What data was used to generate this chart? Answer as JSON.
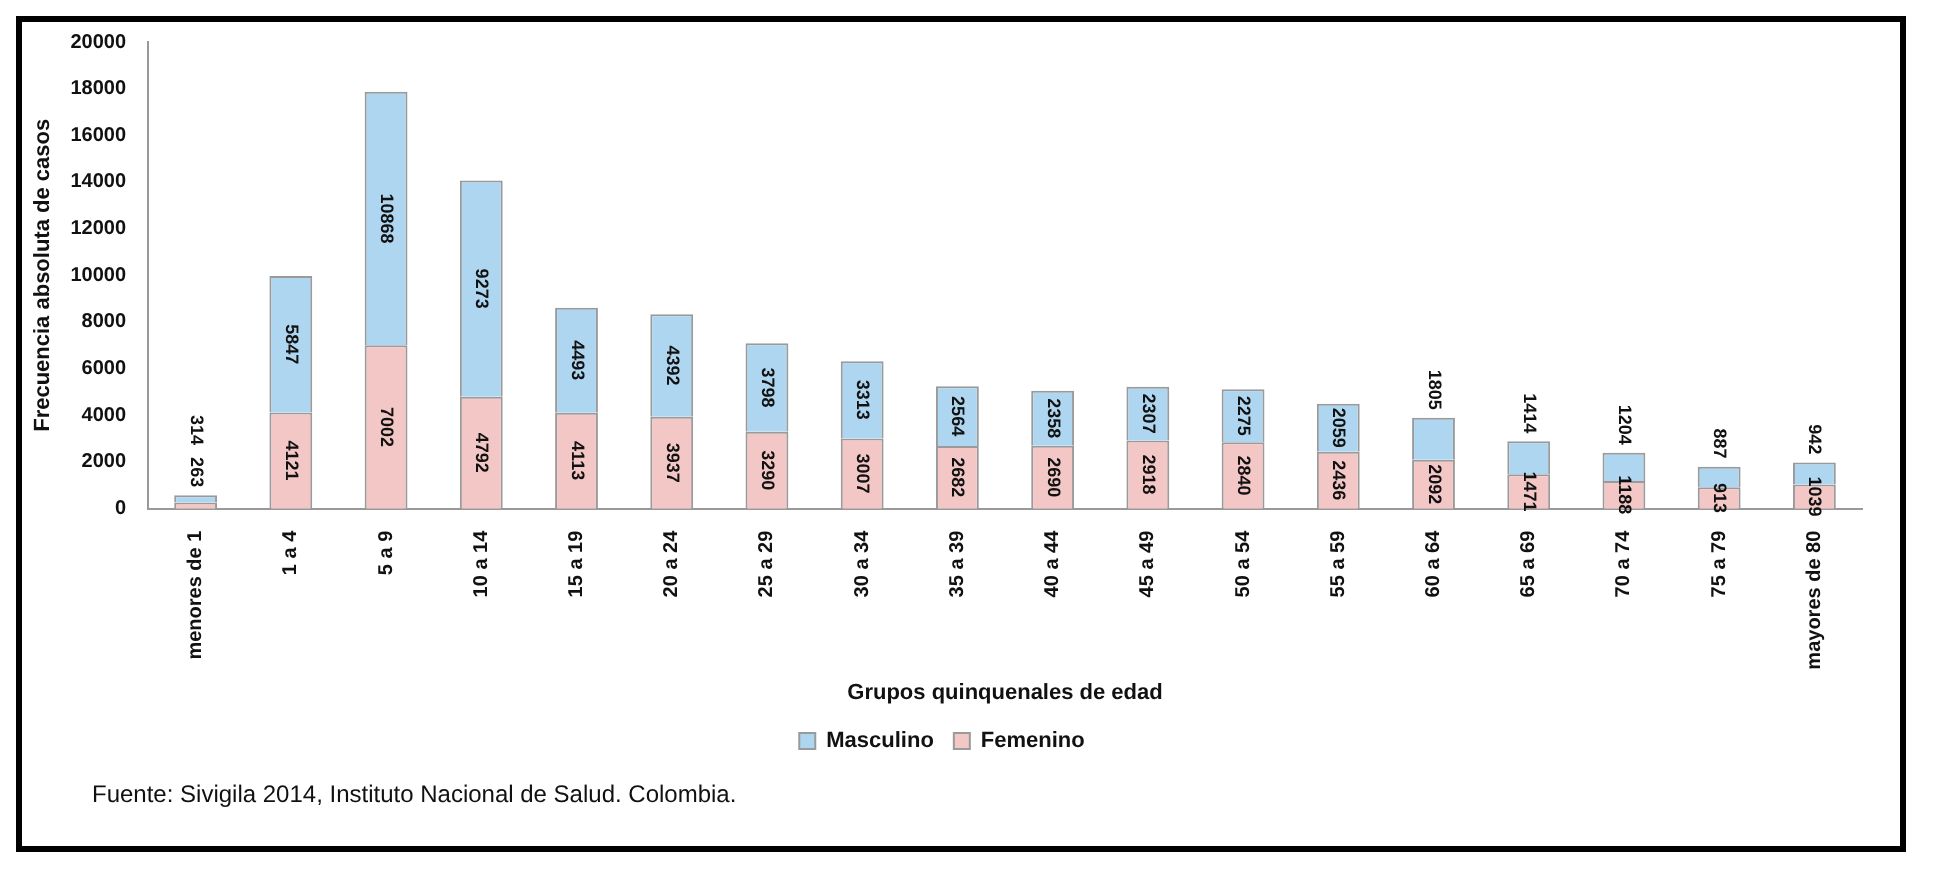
{
  "chart_data": {
    "type": "bar",
    "stacked": true,
    "xlabel": "Grupos quinquenales de edad",
    "ylabel": "Frecuencia absoluta de casos",
    "categories": [
      "menores de 1",
      "1 a 4",
      "5 a 9",
      "10 a 14",
      "15 a 19",
      "20 a 24",
      "25 a 29",
      "30 a 34",
      "35 a 39",
      "40 a 44",
      "45 a 49",
      "50 a 54",
      "55 a 59",
      "60 a 64",
      "65 a 69",
      "70 a 74",
      "75 a 79",
      "mayores de 80"
    ],
    "series": [
      {
        "name": "Femenino",
        "color": "#f4c7c7",
        "values": [
          263,
          4121,
          7002,
          4792,
          4113,
          3937,
          3290,
          3007,
          2682,
          2690,
          2918,
          2840,
          2436,
          2092,
          1471,
          1188,
          913,
          1039
        ]
      },
      {
        "name": "Masculino",
        "color": "#aed6f1",
        "values": [
          314,
          5847,
          10868,
          9273,
          4493,
          4392,
          3798,
          3313,
          2564,
          2358,
          2307,
          2275,
          2059,
          1805,
          1414,
          1204,
          887,
          942
        ]
      }
    ],
    "ylim": [
      0,
      20000
    ],
    "yticks": [
      0,
      2000,
      4000,
      6000,
      8000,
      10000,
      12000,
      14000,
      16000,
      18000,
      20000
    ],
    "grid": false,
    "legend": "bottom",
    "data_labels": true,
    "annotations": [
      "Fuente: Sivigila 2014, Instituto Nacional de Salud. Colombia."
    ]
  }
}
